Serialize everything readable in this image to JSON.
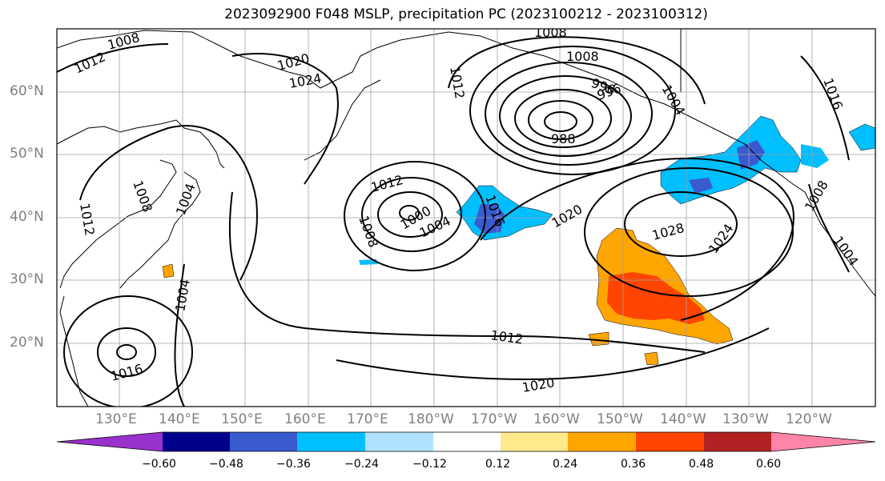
{
  "title": "2023092900 F048 MSLP, precipitation PC (2023100212 - 2023100312)",
  "lat_labels": [
    "60°N",
    "50°N",
    "40°N",
    "30°N",
    "20°N"
  ],
  "lon_labels": [
    "130°E",
    "140°E",
    "150°E",
    "160°E",
    "170°E",
    "180°W",
    "170°W",
    "160°W",
    "150°W",
    "140°W",
    "130°W",
    "120°W"
  ],
  "colorbar": {
    "ticks": [
      "−0.60",
      "−0.48",
      "−0.36",
      "−0.24",
      "−0.12",
      "0.12",
      "0.24",
      "0.36",
      "0.48",
      "0.60"
    ],
    "colors": [
      "#9932cc",
      "#00008b",
      "#3a5bcf",
      "#00bfff",
      "#b0e2ff",
      "#ffffff",
      "#ffe98a",
      "#ffa500",
      "#ff4500",
      "#b22222",
      "#ff85a8"
    ]
  },
  "contour_labels": [
    "1008",
    "1012",
    "1020",
    "1024",
    "1008",
    "1012",
    "1008",
    "996",
    "1004",
    "988",
    "996",
    "1012",
    "1008",
    "1004",
    "1000",
    "1016",
    "1020",
    "1028",
    "1024",
    "1008",
    "1004",
    "1016",
    "1008",
    "1004",
    "1012",
    "1004",
    "1016",
    "1012",
    "1020"
  ]
}
